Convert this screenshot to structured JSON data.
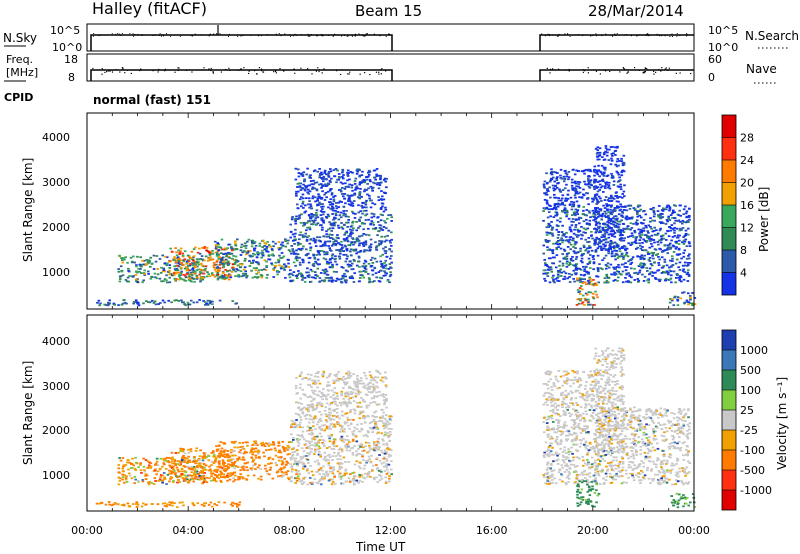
{
  "header": {
    "station": "Halley (fitACF)",
    "beam": "Beam 15",
    "date": "28/Mar/2014"
  },
  "sky_panel": {
    "left_label": "N.Sky",
    "right_label": "N.Search",
    "left_ticks": [
      "10^5",
      "10^0"
    ],
    "right_ticks": [
      "10^5",
      "10^0"
    ]
  },
  "freq_panel": {
    "left_label_1": "Freq.",
    "left_label_2": "[MHz]",
    "right_label": "Nave",
    "left_ticks": [
      "18",
      "8"
    ],
    "right_ticks": [
      "60",
      "0"
    ]
  },
  "cpid": {
    "label": "CPID",
    "value": "normal (fast) 151"
  },
  "x_axis": {
    "ticks": [
      "00:00",
      "04:00",
      "08:00",
      "12:00",
      "16:00",
      "20:00",
      "00:00"
    ],
    "label": "Time UT"
  },
  "power_panel": {
    "ylabel": "Slant Range [km]",
    "yticks": [
      "4000",
      "3000",
      "2000",
      "1000"
    ],
    "colorbar_label": "Power [dB]",
    "colorbar_ticks": [
      "28",
      "24",
      "20",
      "16",
      "12",
      "8",
      "4"
    ],
    "colors": [
      "#1432e6",
      "#2a5aa8",
      "#2f8a55",
      "#3aa85c",
      "#f0a000",
      "#ff7a00",
      "#ff3010",
      "#e00000"
    ]
  },
  "velocity_panel": {
    "ylabel": "Slant Range [km]",
    "yticks": [
      "4000",
      "3000",
      "2000",
      "1000"
    ],
    "colorbar_label": "Velocity [m s⁻¹]",
    "colorbar_ticks": [
      "1000",
      "500",
      "100",
      "25",
      "-25",
      "-100",
      "-500",
      "-1000"
    ],
    "colors": [
      "#1f3fb0",
      "#3a78b8",
      "#2e8b57",
      "#7fcf3f",
      "#c8c8c8",
      "#f0a000",
      "#ff7a00",
      "#ff3010",
      "#e00000"
    ]
  },
  "chart_data": {
    "type": "heatmap",
    "x_range_hours": [
      0,
      24
    ],
    "y_range_km": [
      200,
      4500
    ],
    "data_segments_hours": [
      [
        1,
        12
      ],
      [
        18,
        24
      ]
    ],
    "grid": false
  }
}
